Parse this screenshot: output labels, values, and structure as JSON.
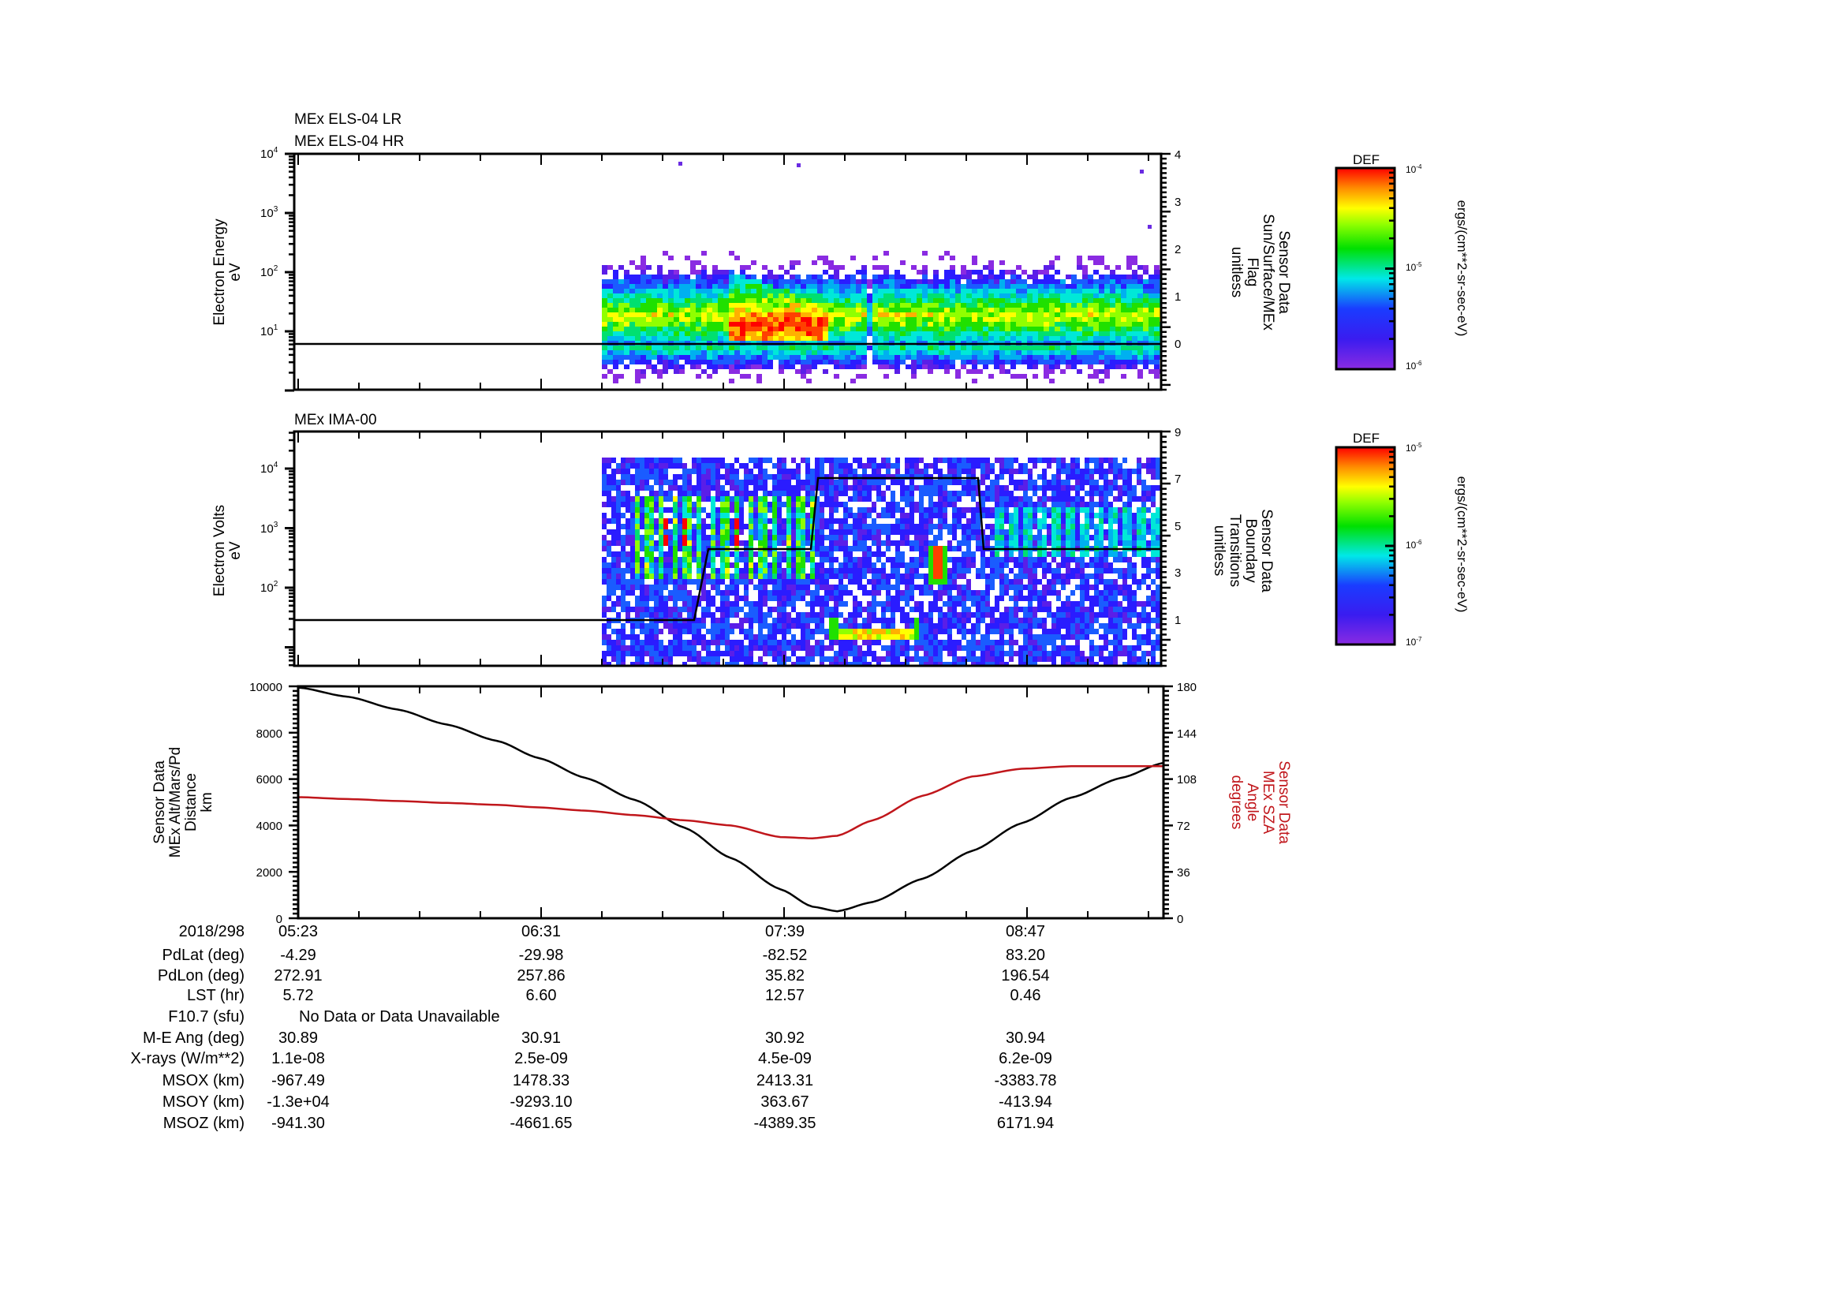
{
  "chart_data": [
    {
      "type": "heatmap",
      "title": [
        "MEx ELS-04 LR",
        "MEx ELS-04 HR"
      ],
      "ylabel": [
        "Electron Energy",
        "eV"
      ],
      "yscale": "log",
      "yticks": [
        "10^1",
        "10^2",
        "10^3",
        "10^4"
      ],
      "ylim": [
        2,
        10000
      ],
      "y2label": [
        "Sensor Data",
        "Sun/Surface/MEx",
        "Flag",
        "unitless"
      ],
      "y2ticks": [
        0,
        1,
        2,
        3,
        4
      ],
      "y2lim": [
        -0.9,
        4
      ],
      "overlay_line": {
        "name": "Sun/Surface/MEx Flag",
        "value": 0,
        "color": "#000000"
      },
      "data_start_time": "06:44",
      "features": [
        {
          "desc": "broad green band",
          "energy_eV": [
            5,
            40
          ],
          "time": "06:44-09:27"
        },
        {
          "desc": "intense red enhancement",
          "energy_eV": [
            10,
            150
          ],
          "time": "07:07-07:29"
        }
      ],
      "colorbar": {
        "label": "DEF",
        "units": "ergs/(cm**2-sr-sec-eV)",
        "range": [
          "10^-6",
          "10^-4"
        ],
        "ticks": [
          "10^-6",
          "10^-5",
          "10^-4"
        ]
      }
    },
    {
      "type": "heatmap",
      "title": "MEx IMA-00",
      "ylabel": [
        "Electron Volts",
        "eV"
      ],
      "yscale": "log",
      "yticks": [
        "10^2",
        "10^3",
        "10^4"
      ],
      "ylim": [
        5,
        30000
      ],
      "y2label": [
        "Sensor Data",
        "Boundary",
        "Transitions",
        "unitless"
      ],
      "y2ticks": [
        1,
        3,
        5,
        7,
        9
      ],
      "y2lim": [
        0,
        9
      ],
      "overlay_line": {
        "name": "Boundary Transitions",
        "color": "#000000",
        "points": [
          [
            "05:23",
            1
          ],
          [
            "06:44",
            1
          ],
          [
            "07:00",
            1
          ],
          [
            "07:04",
            4
          ],
          [
            "07:28",
            4
          ],
          [
            "07:31",
            7
          ],
          [
            "08:09",
            7
          ],
          [
            "08:12",
            4
          ],
          [
            "09:27",
            4
          ]
        ]
      },
      "data_start_time": "06:44",
      "features": [
        {
          "desc": "striated cyan/green bursts with red spots",
          "energy_eV": [
            400,
            3000
          ],
          "time": "06:55-07:30"
        },
        {
          "desc": "low-energy green/yellow ion band",
          "energy_eV": [
            15,
            25
          ],
          "time": "07:34-07:53"
        },
        {
          "desc": "red spot",
          "energy_eV": [
            400,
            800
          ],
          "time": "07:55"
        }
      ],
      "colorbar": {
        "label": "DEF",
        "units": "ergs/(cm**2-sr-sec-eV)",
        "range": [
          "10^-7",
          "10^-5"
        ],
        "ticks": [
          "10^-7",
          "10^-6",
          "10^-5"
        ]
      }
    },
    {
      "type": "line",
      "ylabel": [
        "Sensor Data",
        "MEx Alt/Mars/Pd",
        "Distance",
        "km"
      ],
      "ylim": [
        0,
        10000
      ],
      "yticks": [
        0,
        2000,
        4000,
        6000,
        8000,
        10000
      ],
      "y2label": [
        "Sensor Data",
        "MEx SZA",
        "Angle",
        "degrees"
      ],
      "y2lim": [
        0,
        180
      ],
      "y2ticks": [
        0,
        36,
        72,
        108,
        144,
        180
      ],
      "x": [
        "05:23",
        "05:37",
        "05:51",
        "06:05",
        "06:19",
        "06:31",
        "06:44",
        "06:58",
        "07:12",
        "07:25",
        "07:39",
        "07:48",
        "07:55",
        "08:05",
        "08:19",
        "08:33",
        "08:47",
        "09:01",
        "09:15",
        "09:27"
      ],
      "series": [
        {
          "name": "MEx Alt/Mars/Pd Distance (km)",
          "axis": "left",
          "color": "#000000",
          "values": [
            9950,
            9550,
            9000,
            8350,
            7650,
            6900,
            6050,
            5100,
            3900,
            2600,
            1250,
            500,
            300,
            700,
            1700,
            2900,
            4100,
            5200,
            6050,
            6700
          ]
        },
        {
          "name": "MEx SZA (degrees)",
          "axis": "right",
          "color": "#c0161b",
          "values": [
            94,
            92.5,
            91,
            89.5,
            88,
            86,
            83.5,
            80,
            76,
            72,
            63,
            62,
            64,
            76,
            95,
            110,
            116,
            118,
            118,
            118
          ]
        }
      ]
    }
  ],
  "panels": {
    "els": {
      "title1": "MEx ELS-04 LR",
      "title2": "MEx ELS-04 HR",
      "ylabel1": "Electron Energy",
      "ylabel2": "eV",
      "yticks": [
        {
          "b": "10",
          "e": "4"
        },
        {
          "b": "10",
          "e": "3"
        },
        {
          "b": "10",
          "e": "2"
        },
        {
          "b": "10",
          "e": "1"
        }
      ],
      "y2ticks": [
        "4",
        "3",
        "2",
        "1",
        "0"
      ],
      "y2label": [
        "Sensor Data",
        "Sun/Surface/MEx",
        "Flag",
        "unitless"
      ]
    },
    "ima": {
      "title": "MEx IMA-00",
      "ylabel1": "Electron Volts",
      "ylabel2": "eV",
      "yticks": [
        {
          "b": "10",
          "e": "4"
        },
        {
          "b": "10",
          "e": "3"
        },
        {
          "b": "10",
          "e": "2"
        }
      ],
      "y2ticks": [
        "9",
        "7",
        "5",
        "3",
        "1"
      ],
      "y2label": [
        "Sensor Data",
        "Boundary",
        "Transitions",
        "unitless"
      ]
    },
    "orbit": {
      "yticks": [
        "10000",
        "8000",
        "6000",
        "4000",
        "2000",
        "0"
      ],
      "y2ticks": [
        "180",
        "144",
        "108",
        "72",
        "36",
        "0"
      ],
      "ylabel": [
        "Sensor Data",
        "MEx Alt/Mars/Pd",
        "Distance",
        "km"
      ],
      "y2label": [
        "Sensor Data",
        "MEx SZA",
        "Angle",
        "degrees"
      ]
    }
  },
  "colorbars": [
    {
      "label": "DEF",
      "top": {
        "b": "10",
        "e": "-4"
      },
      "mid": {
        "b": "10",
        "e": "-5"
      },
      "bot": {
        "b": "10",
        "e": "-6"
      },
      "units": "ergs/(cm**2-sr-sec-eV)"
    },
    {
      "label": "DEF",
      "top": {
        "b": "10",
        "e": "-5"
      },
      "mid": {
        "b": "10",
        "e": "-6"
      },
      "bot": {
        "b": "10",
        "e": "-7"
      },
      "units": "ergs/(cm**2-sr-sec-eV)"
    }
  ],
  "ephemeris": {
    "date": "2018/298",
    "times": [
      "05:23",
      "06:31",
      "07:39",
      "08:47"
    ],
    "rows": [
      {
        "label": "PdLat (deg)",
        "values": [
          "-4.29",
          "-29.98",
          "-82.52",
          "83.20"
        ]
      },
      {
        "label": "PdLon (deg)",
        "values": [
          "272.91",
          "257.86",
          "35.82",
          "196.54"
        ]
      },
      {
        "label": "LST (hr)",
        "values": [
          "5.72",
          "6.60",
          "12.57",
          "0.46"
        ]
      },
      {
        "label": "F10.7 (sfu)",
        "note": "No Data or Data Unavailable"
      },
      {
        "label": "M-E Ang (deg)",
        "values": [
          "30.89",
          "30.91",
          "30.92",
          "30.94"
        ]
      },
      {
        "label": "X-rays (W/m**2)",
        "values": [
          "1.1e-08",
          "2.5e-09",
          "4.5e-09",
          "6.2e-09"
        ]
      },
      {
        "label": "MSOX (km)",
        "values": [
          "-967.49",
          "1478.33",
          "2413.31",
          "-3383.78"
        ]
      },
      {
        "label": "MSOY (km)",
        "values": [
          "-1.3e+04",
          "-9293.10",
          "363.67",
          "-413.94"
        ]
      },
      {
        "label": "MSOZ (km)",
        "values": [
          "-941.30",
          "-4661.65",
          "-4389.35",
          "6171.94"
        ]
      }
    ]
  }
}
